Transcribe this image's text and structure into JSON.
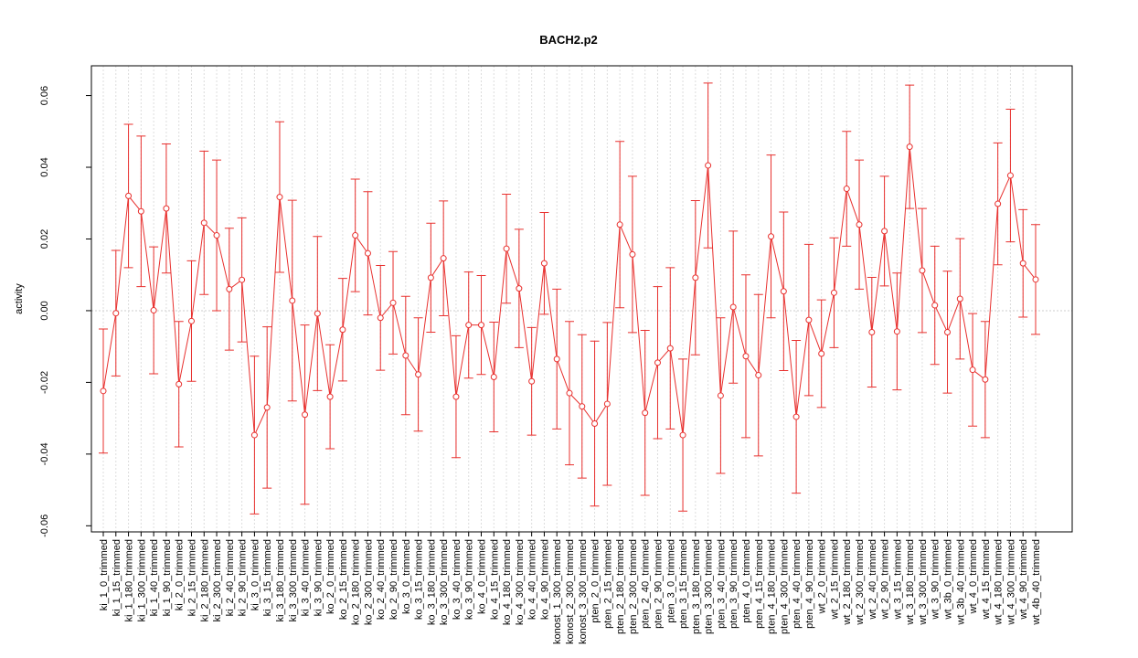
{
  "chart_data": {
    "type": "line_errorbar",
    "title": "BACH2.p2",
    "y_label": "activity",
    "color": "#e8302e",
    "categories": [
      "ki_1_0_trimmed",
      "ki_1_15_trimmed",
      "ki_1_180_trimmed",
      "ki_1_300_trimmed",
      "ki_1_40_trimmed",
      "ki_1_90_trimmed",
      "ki_2_0_trimmed",
      "ki_2_15_trimmed",
      "ki_2_180_trimmed",
      "ki_2_300_trimmed",
      "ki_2_40_trimmed",
      "ki_2_90_trimmed",
      "ki_3_0_trimmed",
      "ki_3_15_trimmed",
      "ki_3_180_trimmed",
      "ki_3_300_trimmed",
      "ki_3_40_trimmed",
      "ki_3_90_trimmed",
      "ko_2_0_trimmed",
      "ko_2_15_trimmed",
      "ko_2_180_trimmed",
      "ko_2_300_trimmed",
      "ko_2_40_trimmed",
      "ko_2_90_trimmed",
      "ko_3_0_trimmed",
      "ko_3_15_trimmed",
      "ko_3_180_trimmed",
      "ko_3_300_trimmed",
      "ko_3_40_trimmed",
      "ko_3_90_trimmed",
      "ko_4_0_trimmed",
      "ko_4_15_trimmed",
      "ko_4_180_trimmed",
      "ko_4_300_trimmed",
      "ko_4_40_trimmed",
      "ko_4_90_trimmed",
      "konost_1_300_trimmed",
      "konost_2_300_trimmed",
      "konost_3_300_trimmed",
      "pten_2_0_trimmed",
      "pten_2_15_trimmed",
      "pten_2_180_trimmed",
      "pten_2_300_trimmed",
      "pten_2_40_trimmed",
      "pten_2_90_trimmed",
      "pten_3_0_trimmed",
      "pten_3_15_trimmed",
      "pten_3_180_trimmed",
      "pten_3_300_trimmed",
      "pten_3_40_trimmed",
      "pten_3_90_trimmed",
      "pten_4_0_trimmed",
      "pten_4_15_trimmed",
      "pten_4_180_trimmed",
      "pten_4_300_trimmed",
      "pten_4_40_trimmed",
      "pten_4_90_trimmed",
      "wt_2_0_trimmed",
      "wt_2_15_trimmed",
      "wt_2_180_trimmed",
      "wt_2_300_trimmed",
      "wt_2_40_trimmed",
      "wt_2_90_trimmed",
      "wt_3_15_trimmed",
      "wt_3_180_trimmed",
      "wt_3_300_trimmed",
      "wt_3_90_trimmed",
      "wt_3b_0_trimmed",
      "wt_3b_40_trimmed",
      "wt_4_0_trimmed",
      "wt_4_15_trimmed",
      "wt_4_180_trimmed",
      "wt_4_300_trimmed",
      "wt_4_90_trimmed",
      "wt_4b_40_trimmed"
    ],
    "values": [
      -0.0224,
      -0.0007,
      0.032,
      0.0277,
      0.0001,
      0.0285,
      -0.0205,
      -0.0029,
      0.0245,
      0.021,
      0.006,
      0.0086,
      -0.0347,
      -0.027,
      0.0317,
      0.0028,
      -0.029,
      -0.0008,
      -0.024,
      -0.0053,
      0.021,
      0.016,
      -0.002,
      0.0022,
      -0.0125,
      -0.0178,
      0.0092,
      0.0146,
      -0.024,
      -0.004,
      -0.004,
      -0.0185,
      0.0173,
      0.0062,
      -0.0197,
      0.0132,
      -0.0135,
      -0.023,
      -0.0267,
      -0.0315,
      -0.026,
      0.024,
      0.0157,
      -0.0285,
      -0.0145,
      -0.0105,
      -0.0347,
      0.0092,
      0.0405,
      -0.0237,
      0.001,
      -0.0127,
      -0.018,
      0.0207,
      0.0054,
      -0.0296,
      -0.0026,
      -0.012,
      0.005,
      0.034,
      0.024,
      -0.006,
      0.0222,
      -0.0058,
      0.0457,
      0.0112,
      0.0015,
      -0.006,
      0.0033,
      -0.0165,
      -0.0192,
      0.0298,
      0.0377,
      0.0132,
      0.0087
    ],
    "errors": [
      0.0173,
      0.0175,
      0.02,
      0.021,
      0.0177,
      0.018,
      0.0175,
      0.0168,
      0.02,
      0.021,
      0.017,
      0.0173,
      0.022,
      0.0225,
      0.021,
      0.028,
      0.025,
      0.0215,
      0.0145,
      0.0143,
      0.0157,
      0.0172,
      0.0146,
      0.0143,
      0.0165,
      0.0158,
      0.0152,
      0.016,
      0.017,
      0.0148,
      0.0138,
      0.0153,
      0.0152,
      0.0165,
      0.015,
      0.0142,
      0.0195,
      0.02,
      0.02,
      0.023,
      0.0227,
      0.0232,
      0.0218,
      0.023,
      0.0212,
      0.0225,
      0.0212,
      0.0215,
      0.023,
      0.0217,
      0.0212,
      0.0227,
      0.0225,
      0.0227,
      0.0221,
      0.0213,
      0.0211,
      0.015,
      0.0153,
      0.016,
      0.018,
      0.0153,
      0.0153,
      0.0163,
      0.0172,
      0.0173,
      0.0165,
      0.017,
      0.0168,
      0.0157,
      0.0162,
      0.017,
      0.0185,
      0.015,
      0.0153
    ],
    "ylim": [
      -0.0617,
      0.0683
    ],
    "yticks": [
      -0.06,
      -0.04,
      -0.02,
      {
        "value": 0,
        "label": "0.00"
      },
      0.02,
      0.04,
      0.06
    ],
    "grid": true
  }
}
